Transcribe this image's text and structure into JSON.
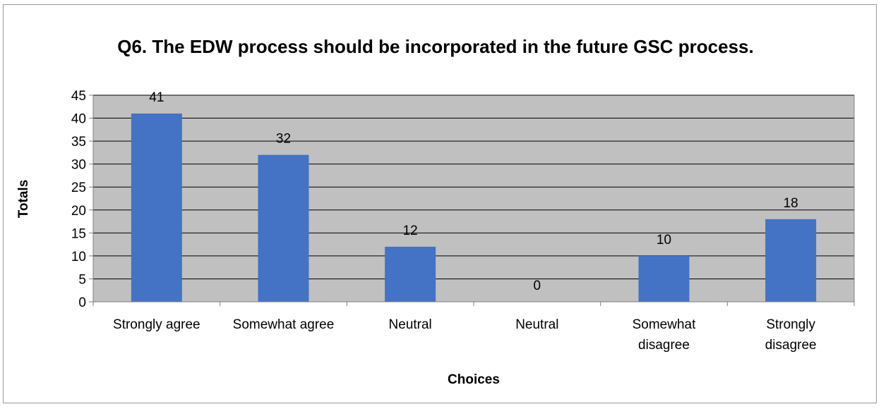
{
  "chart_data": {
    "type": "bar",
    "title": "Q6. The EDW process should be incorporated in the future GSC process.",
    "xlabel": "Choices",
    "ylabel": "Totals",
    "categories": [
      "Strongly agree",
      "Somewhat agree",
      "Neutral",
      "Neutral",
      "Somewhat disagree",
      "Strongly disagree"
    ],
    "values": [
      41,
      32,
      12,
      0,
      10,
      18
    ],
    "data_labels": [
      "41",
      "32",
      "12",
      "0",
      "10",
      "18"
    ],
    "ylim": [
      0,
      45
    ],
    "yticks": [
      0,
      5,
      10,
      15,
      20,
      25,
      30,
      35,
      40,
      45
    ],
    "grid": true,
    "legend": "none",
    "colors": {
      "bar": "#4472c4",
      "plot_background": "#c0c0c0",
      "gridline": "#000000",
      "frame_border": "#9a9a9a"
    }
  }
}
